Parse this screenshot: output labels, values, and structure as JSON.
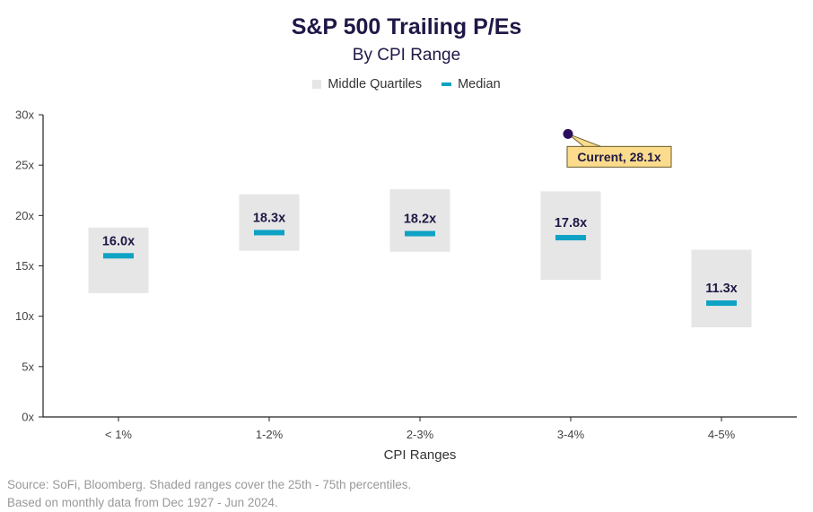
{
  "title": "S&P 500 Trailing P/Es",
  "subtitle": "By CPI Range",
  "legend": {
    "box_label": "Middle Quartiles",
    "median_label": "Median"
  },
  "source": {
    "line1": "Source: SoFi, Bloomberg. Shaded ranges cover the 25th - 75th percentiles.",
    "line2": "Based on monthly data from Dec 1927 - Jun 2024."
  },
  "colors": {
    "box": "#e6e6e6",
    "median": "#0ea2c4",
    "title": "#1f1846",
    "callout_fill": "#fbdc8c",
    "marker": "#2a0e5c"
  },
  "chart_data": {
    "type": "box",
    "xlabel": "CPI Ranges",
    "ylabel": "",
    "ylim": [
      0,
      30
    ],
    "yticks": [
      0,
      5,
      10,
      15,
      20,
      25,
      30
    ],
    "ytick_labels": [
      "0x",
      "5x",
      "10x",
      "15x",
      "20x",
      "25x",
      "30x"
    ],
    "categories": [
      "< 1%",
      "1-2%",
      "2-3%",
      "3-4%",
      "4-5%"
    ],
    "series": [
      {
        "name": "Middle Quartiles",
        "q1": [
          12.3,
          16.5,
          16.4,
          13.6,
          8.9
        ],
        "q3": [
          18.8,
          22.1,
          22.6,
          22.4,
          16.6
        ]
      },
      {
        "name": "Median",
        "values": [
          16.0,
          18.3,
          18.2,
          17.8,
          11.3
        ],
        "labels": [
          "16.0x",
          "18.3x",
          "18.2x",
          "17.8x",
          "11.3x"
        ]
      }
    ],
    "annotation": {
      "category": "3-4%",
      "value": 28.1,
      "label": "Current, 28.1x"
    },
    "grid": false
  }
}
